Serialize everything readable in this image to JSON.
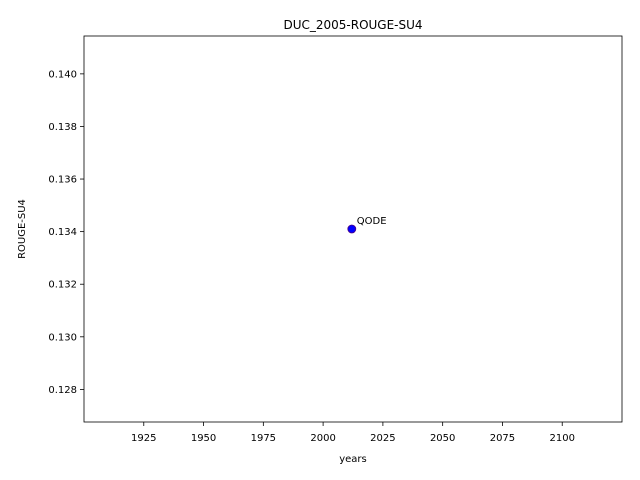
{
  "chart_data": {
    "type": "scatter",
    "title": "DUC_2005-ROUGE-SU4",
    "xlabel": "years",
    "ylabel": "ROUGE-SU4",
    "xlim": [
      1900,
      2125
    ],
    "ylim": [
      0.12676,
      0.14144
    ],
    "xticks": [
      1925,
      1950,
      1975,
      2000,
      2025,
      2050,
      2075,
      2100
    ],
    "yticks": [
      0.128,
      0.13,
      0.132,
      0.134,
      0.136,
      0.138,
      0.14
    ],
    "grid": false,
    "points": [
      {
        "x": 2012,
        "y": 0.1341,
        "label": "QODE"
      }
    ],
    "colors": {
      "point_fill": "#0000ff",
      "point_edge": "#4b0082",
      "axis": "#000000"
    }
  }
}
